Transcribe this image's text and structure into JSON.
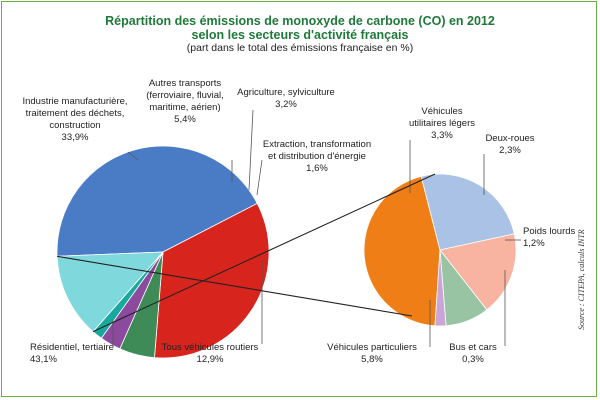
{
  "header": {
    "title_line1": "Répartition des émissions de monoxyde de carbone (CO) en 2012",
    "title_line2": "selon les secteurs d'activité français",
    "subtitle": "(part dans le total des émissions française en %)"
  },
  "source": "Source : CITEPA, calculs INTR",
  "chart_data": [
    {
      "type": "pie",
      "title": "Répartition des émissions de monoxyde de carbone (CO) en 2012 selon les secteurs d'activité français",
      "subtitle": "(part dans le total des émissions française en %)",
      "slices": [
        {
          "label_lines": [
            "Résidentiel, tertiaire"
          ],
          "value_text": "43,1%",
          "value": 43.1,
          "color": "#4a7cc6"
        },
        {
          "label_lines": [
            "Industrie manufacturière,",
            "traitement des déchets,",
            "construction"
          ],
          "value_text": "33,9%",
          "value": 33.9,
          "color": "#d7251d"
        },
        {
          "label_lines": [
            "Autres transports",
            "(ferroviaire, fluvial,",
            "maritime, aérien)"
          ],
          "value_text": "5,4%",
          "value": 5.4,
          "color": "#3e8b58"
        },
        {
          "label_lines": [
            "Agriculture, sylviculture"
          ],
          "value_text": "3,2%",
          "value": 3.2,
          "color": "#8b4a9e"
        },
        {
          "label_lines": [
            "Extraction, transformation",
            "et distribution d'énergie"
          ],
          "value_text": "1,6%",
          "value": 1.6,
          "color": "#17a89e"
        },
        {
          "label_lines": [
            "Tous véhicules routiers"
          ],
          "value_text": "12,9%",
          "value": 12.9,
          "color": "#7fd9dc"
        }
      ]
    },
    {
      "type": "pie",
      "slices": [
        {
          "label_lines": [
            "Véhicules particuliers"
          ],
          "value_text": "5,8%",
          "value": 5.8,
          "color": "#f07e16"
        },
        {
          "label_lines": [
            "Véhicules",
            "utilitaires légers"
          ],
          "value_text": "3,3%",
          "value": 3.3,
          "color": "#aac2e6"
        },
        {
          "label_lines": [
            "Deux-roues"
          ],
          "value_text": "2,3%",
          "value": 2.3,
          "color": "#f8b3a1"
        },
        {
          "label_lines": [
            "Poids lourds"
          ],
          "value_text": "1,2%",
          "value": 1.2,
          "color": "#98c4a3"
        },
        {
          "label_lines": [
            "Bus et cars"
          ],
          "value_text": "0,3%",
          "value": 0.3,
          "color": "#c9a6d6"
        }
      ]
    }
  ]
}
